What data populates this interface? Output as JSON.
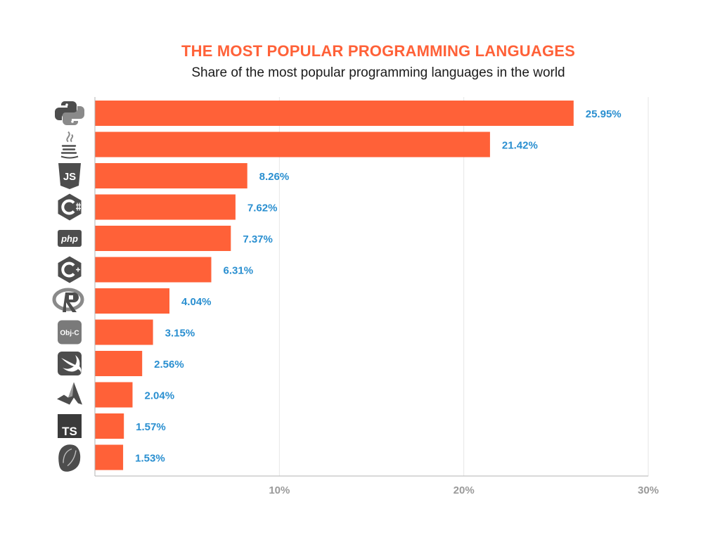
{
  "title": "THE MOST POPULAR PROGRAMMING LANGUAGES",
  "subtitle": "Share of the most popular programming languages in the world",
  "colors": {
    "bar": "#ff6138",
    "value_label": "#2a8fd0",
    "title": "#ff6138",
    "icon": "#4d4d4d",
    "grid": "#e6e6e6",
    "axis": "#b3b3b3"
  },
  "chart_data": {
    "type": "bar",
    "orientation": "horizontal",
    "categories": [
      "python-icon",
      "java-icon",
      "javascript-icon",
      "csharp-icon",
      "php-icon",
      "cplusplus-icon",
      "r-icon",
      "objective-c-icon",
      "swift-icon",
      "matlab-icon",
      "typescript-icon",
      "vba-icon"
    ],
    "values": [
      25.95,
      21.42,
      8.26,
      7.62,
      7.37,
      6.31,
      4.04,
      3.15,
      2.56,
      2.04,
      1.57,
      1.53
    ],
    "value_labels": [
      "25.95%",
      "21.42%",
      "8.26%",
      "7.62%",
      "7.37%",
      "6.31%",
      "4.04%",
      "3.15%",
      "2.56%",
      "2.04%",
      "1.57%",
      "1.53%"
    ],
    "icon_labels": {
      "php-icon": "php",
      "objective-c-icon": "Obj-C",
      "typescript-icon": "TS",
      "javascript-icon": "JS"
    },
    "xlim": [
      0,
      30
    ],
    "xticks": [
      10,
      20,
      30
    ],
    "xtick_labels": [
      "10%",
      "20%",
      "30%"
    ],
    "grid": true,
    "legend": "none"
  }
}
